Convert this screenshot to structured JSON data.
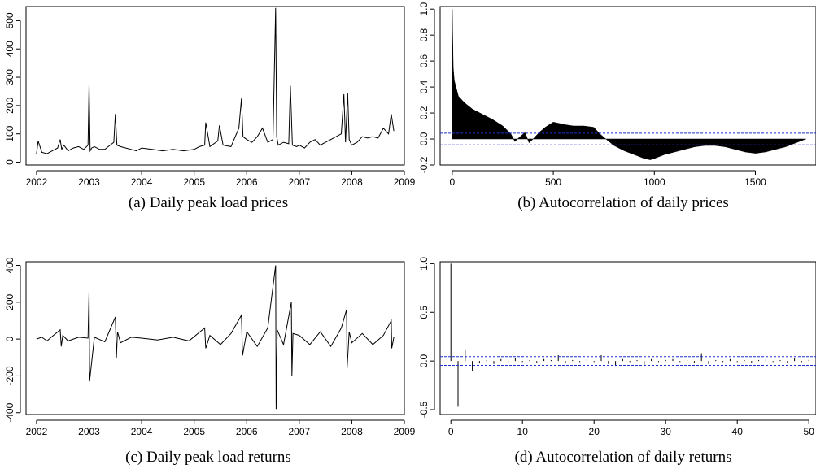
{
  "chart_data": [
    {
      "id": "a",
      "type": "line",
      "caption": "(a) Daily peak load prices",
      "xlabel": "",
      "ylabel": "",
      "xlim": [
        2001.8,
        2009.0
      ],
      "ylim": [
        -10,
        550
      ],
      "xticks": [
        2002,
        2003,
        2004,
        2005,
        2006,
        2007,
        2008,
        2009
      ],
      "yticks": [
        0,
        100,
        200,
        300,
        400,
        500
      ],
      "x": [
        2002.0,
        2002.03,
        2002.1,
        2002.2,
        2002.3,
        2002.4,
        2002.45,
        2002.48,
        2002.52,
        2002.6,
        2002.7,
        2002.8,
        2002.9,
        2002.98,
        2003.0,
        2003.02,
        2003.05,
        2003.1,
        2003.2,
        2003.3,
        2003.4,
        2003.47,
        2003.5,
        2003.53,
        2003.6,
        2003.7,
        2003.8,
        2003.9,
        2004.0,
        2004.2,
        2004.4,
        2004.6,
        2004.8,
        2005.0,
        2005.1,
        2005.2,
        2005.22,
        2005.3,
        2005.45,
        2005.48,
        2005.55,
        2005.7,
        2005.85,
        2005.9,
        2005.93,
        2006.0,
        2006.1,
        2006.2,
        2006.3,
        2006.4,
        2006.5,
        2006.55,
        2006.57,
        2006.6,
        2006.7,
        2006.8,
        2006.83,
        2006.87,
        2006.95,
        2007.0,
        2007.1,
        2007.2,
        2007.3,
        2007.4,
        2007.5,
        2007.6,
        2007.7,
        2007.8,
        2007.85,
        2007.88,
        2007.92,
        2007.95,
        2008.0,
        2008.1,
        2008.2,
        2008.3,
        2008.4,
        2008.5,
        2008.6,
        2008.7,
        2008.75,
        2008.8
      ],
      "y": [
        30,
        75,
        35,
        30,
        40,
        50,
        80,
        45,
        60,
        40,
        50,
        55,
        45,
        60,
        275,
        40,
        50,
        55,
        45,
        45,
        60,
        70,
        170,
        60,
        55,
        50,
        45,
        40,
        50,
        45,
        40,
        45,
        40,
        45,
        55,
        60,
        140,
        55,
        75,
        130,
        60,
        55,
        120,
        225,
        90,
        80,
        70,
        90,
        120,
        70,
        80,
        545,
        90,
        60,
        70,
        65,
        270,
        60,
        55,
        60,
        50,
        70,
        80,
        60,
        70,
        80,
        90,
        100,
        240,
        70,
        245,
        80,
        60,
        70,
        90,
        85,
        90,
        85,
        120,
        100,
        170,
        110
      ]
    },
    {
      "id": "b",
      "type": "area",
      "caption": "(b) Autocorrelation of daily prices",
      "xlabel": "",
      "ylabel": "",
      "xlim": [
        -60,
        1800
      ],
      "ylim": [
        -0.2,
        1.02
      ],
      "xticks": [
        0,
        500,
        1000,
        1500
      ],
      "yticks": [
        -0.2,
        0.0,
        0.2,
        0.4,
        0.6,
        0.8,
        1.0
      ],
      "ci": 0.045,
      "x": [
        0,
        5,
        10,
        30,
        60,
        100,
        150,
        200,
        250,
        290,
        310,
        330,
        360,
        380,
        400,
        430,
        460,
        500,
        530,
        560,
        600,
        650,
        700,
        730,
        760,
        800,
        850,
        900,
        950,
        980,
        1000,
        1050,
        1100,
        1150,
        1200,
        1250,
        1300,
        1350,
        1400,
        1450,
        1500,
        1550,
        1600,
        1650,
        1700,
        1750
      ],
      "y": [
        1.0,
        0.55,
        0.45,
        0.33,
        0.28,
        0.23,
        0.19,
        0.15,
        0.1,
        0.04,
        -0.02,
        0.01,
        0.05,
        -0.03,
        0.0,
        0.05,
        0.09,
        0.13,
        0.12,
        0.11,
        0.1,
        0.1,
        0.09,
        0.04,
        0.0,
        -0.05,
        -0.09,
        -0.12,
        -0.15,
        -0.16,
        -0.15,
        -0.12,
        -0.1,
        -0.08,
        -0.06,
        -0.05,
        -0.05,
        -0.06,
        -0.08,
        -0.1,
        -0.11,
        -0.1,
        -0.08,
        -0.06,
        -0.03,
        0.0
      ]
    },
    {
      "id": "c",
      "type": "line",
      "caption": "(c) Daily peak load returns",
      "xlabel": "",
      "ylabel": "",
      "xlim": [
        2001.8,
        2009.0
      ],
      "ylim": [
        -410,
        420
      ],
      "xticks": [
        2002,
        2003,
        2004,
        2005,
        2006,
        2007,
        2008,
        2009
      ],
      "yticks": [
        -400,
        -200,
        0,
        200,
        400
      ],
      "x": [
        2002.0,
        2002.1,
        2002.2,
        2002.3,
        2002.45,
        2002.47,
        2002.5,
        2002.6,
        2002.8,
        2002.98,
        2003.0,
        2003.01,
        2003.1,
        2003.3,
        2003.5,
        2003.52,
        2003.54,
        2003.6,
        2003.8,
        2004.0,
        2004.3,
        2004.6,
        2004.9,
        2005.2,
        2005.22,
        2005.3,
        2005.5,
        2005.7,
        2005.9,
        2005.92,
        2006.0,
        2006.2,
        2006.4,
        2006.55,
        2006.56,
        2006.58,
        2006.7,
        2006.85,
        2006.86,
        2006.88,
        2007.0,
        2007.2,
        2007.4,
        2007.6,
        2007.8,
        2007.9,
        2007.91,
        2007.95,
        2008.0,
        2008.2,
        2008.4,
        2008.6,
        2008.75,
        2008.76,
        2008.8
      ],
      "y": [
        0,
        10,
        -10,
        15,
        50,
        -40,
        20,
        -10,
        10,
        5,
        260,
        -230,
        10,
        -15,
        120,
        -100,
        40,
        -20,
        10,
        5,
        -5,
        10,
        -10,
        60,
        -50,
        20,
        -30,
        30,
        130,
        -90,
        40,
        -40,
        60,
        400,
        -380,
        50,
        -30,
        200,
        -200,
        30,
        20,
        -30,
        40,
        -40,
        60,
        160,
        -160,
        40,
        -20,
        30,
        -30,
        20,
        100,
        -50,
        10
      ]
    },
    {
      "id": "d",
      "type": "bar",
      "caption": "(d) Autocorrelation of daily returns",
      "xlabel": "",
      "ylabel": "",
      "xlim": [
        -1.5,
        51
      ],
      "ylim": [
        -0.55,
        1.02
      ],
      "xticks": [
        0,
        10,
        20,
        30,
        40,
        50
      ],
      "yticks": [
        -0.5,
        0.0,
        0.5,
        1.0
      ],
      "ci": 0.045,
      "x": [
        0,
        1,
        2,
        3,
        4,
        5,
        6,
        7,
        8,
        9,
        10,
        11,
        12,
        13,
        14,
        15,
        16,
        17,
        18,
        19,
        20,
        21,
        22,
        23,
        24,
        25,
        26,
        27,
        28,
        29,
        30,
        31,
        32,
        33,
        34,
        35,
        36,
        37,
        38,
        39,
        40,
        41,
        42,
        43,
        44,
        45,
        46,
        47,
        48,
        49,
        50
      ],
      "y": [
        1.0,
        -0.47,
        0.12,
        -0.1,
        -0.02,
        0.01,
        -0.03,
        0.02,
        -0.02,
        0.03,
        -0.01,
        0.01,
        -0.02,
        0.02,
        0.01,
        0.06,
        -0.02,
        0.01,
        -0.01,
        0.02,
        -0.01,
        0.06,
        -0.03,
        -0.05,
        0.02,
        -0.01,
        0.01,
        -0.04,
        0.02,
        -0.01,
        0.01,
        0.02,
        -0.01,
        0.01,
        -0.02,
        0.08,
        -0.03,
        0.01,
        -0.01,
        0.02,
        -0.01,
        0.01,
        -0.02,
        0.01,
        0.02,
        -0.01,
        0.01,
        -0.02,
        0.03,
        -0.01,
        0.01
      ]
    }
  ]
}
